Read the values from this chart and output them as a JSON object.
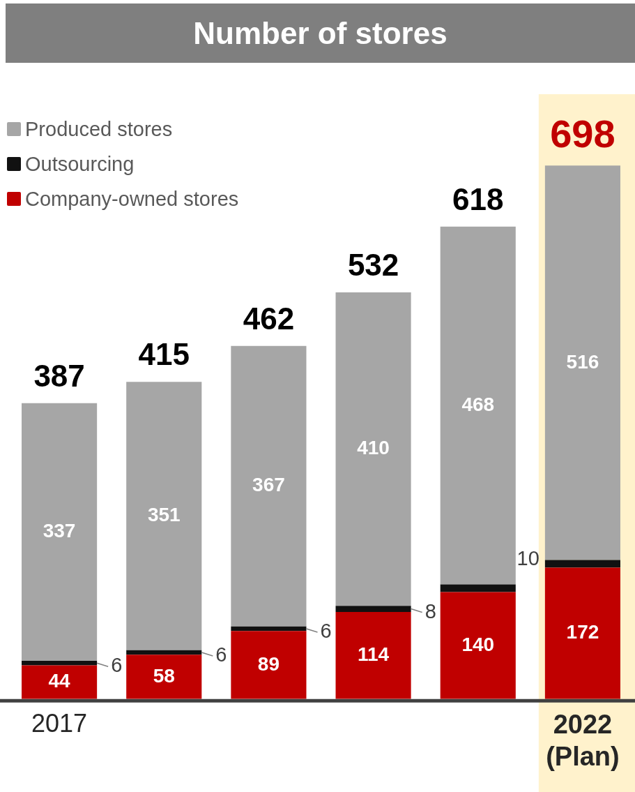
{
  "chart_data": {
    "type": "bar",
    "title": "Number of stores",
    "stacked": true,
    "categories": [
      "2017",
      null,
      null,
      null,
      null,
      "2022 (Plan)"
    ],
    "series": [
      {
        "name": "Company-owned stores",
        "color": "#c00000",
        "values": [
          44,
          58,
          89,
          114,
          140,
          172
        ],
        "value_labels": [
          "44",
          "58",
          "89",
          "114",
          "140",
          "172"
        ]
      },
      {
        "name": "Outsourcing",
        "color": "#111111",
        "values": [
          6,
          6,
          6,
          8,
          10,
          10
        ],
        "value_labels": [
          "6",
          "6",
          "6",
          "8",
          null,
          "10"
        ]
      },
      {
        "name": "Produced stores",
        "color": "#a6a6a6",
        "values": [
          337,
          351,
          367,
          410,
          468,
          516
        ],
        "value_labels": [
          "337",
          "351",
          "367",
          "410",
          "468",
          "516"
        ]
      }
    ],
    "totals": [
      "387",
      "415",
      "462",
      "532",
      "618",
      "698"
    ],
    "bands": [
      {
        "axis": "x",
        "from": "2022 (Plan)",
        "to": "2022 (Plan)",
        "color": "#fff2cc"
      }
    ],
    "legend": "top left",
    "grid": false
  }
}
